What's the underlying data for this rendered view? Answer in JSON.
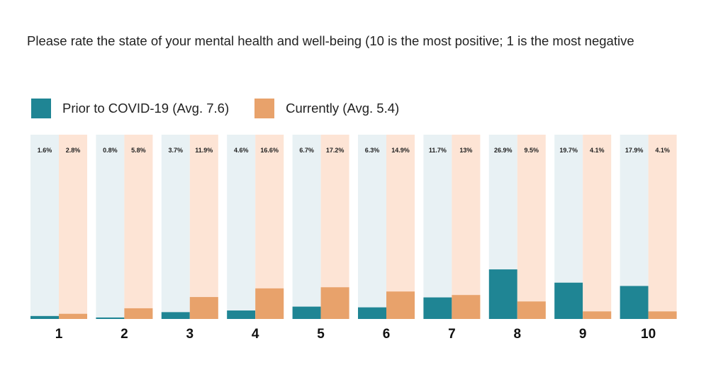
{
  "chart_data": {
    "type": "bar",
    "title": "Please rate the state of your mental health and well-being (10 is the most positive; 1 is the most negative",
    "categories": [
      "1",
      "2",
      "3",
      "4",
      "5",
      "6",
      "7",
      "8",
      "9",
      "10"
    ],
    "series": [
      {
        "name": "Prior to COVID-19 (Avg. 7.6)",
        "values": [
          1.6,
          0.8,
          3.7,
          4.6,
          6.7,
          6.3,
          11.7,
          26.9,
          19.7,
          17.9
        ],
        "labels": [
          "1.6%",
          "0.8%",
          "3.7%",
          "4.6%",
          "6.7%",
          "6.3%",
          "11.7%",
          "26.9%",
          "19.7%",
          "17.9%"
        ],
        "color": "#1f8594",
        "background": "#e8f1f4"
      },
      {
        "name": "Currently (Avg. 5.4)",
        "values": [
          2.8,
          5.8,
          11.9,
          16.6,
          17.2,
          14.9,
          13,
          9.5,
          4.1,
          4.1
        ],
        "labels": [
          "2.8%",
          "5.8%",
          "11.9%",
          "16.6%",
          "17.2%",
          "14.9%",
          "13%",
          "9.5%",
          "4.1%",
          "4.1%"
        ],
        "color": "#e8a26b",
        "background": "#fde4d5"
      }
    ],
    "ylim": [
      0,
      100
    ],
    "grid": false,
    "legend_position": "top-left"
  }
}
